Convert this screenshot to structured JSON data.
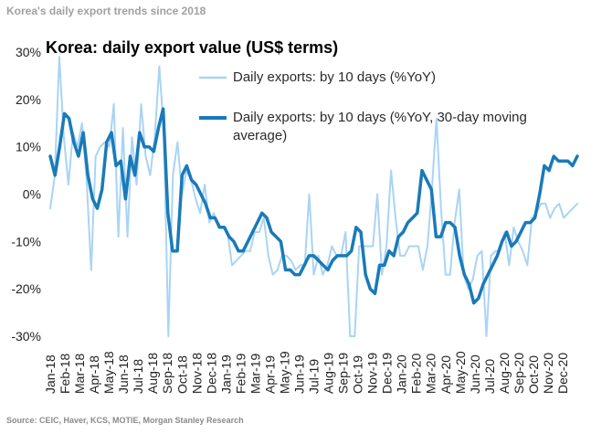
{
  "header": {
    "title": "Korea's daily export trends since 2018"
  },
  "footer": {
    "source": "Source: CEIC, Haver, KCS, MOTIE, Morgan Stanley Research"
  },
  "chart_data": {
    "type": "line",
    "title": "Korea: daily export value (US$ terms)",
    "ylim": [
      -30,
      30
    ],
    "y_ticks": [
      30,
      20,
      10,
      0,
      -10,
      -20,
      -30
    ],
    "y_tick_labels": [
      "30%",
      "20%",
      "10%",
      "0%",
      "-10%",
      "-20%",
      "-30%"
    ],
    "x_range": [
      0,
      108
    ],
    "x_ticks": [
      0,
      3,
      6,
      9,
      12,
      15,
      18,
      21,
      24,
      27,
      30,
      33,
      36,
      39,
      42,
      45,
      48,
      51,
      54,
      57,
      60,
      63,
      66,
      69,
      72,
      75,
      78,
      81,
      84,
      87,
      90,
      93,
      96,
      99,
      102,
      105
    ],
    "x_tick_labels": [
      "Jan-18",
      "Feb-18",
      "Mar-18",
      "Apr-18",
      "May-18",
      "Jun-18",
      "Jul-18",
      "Aug-18",
      "Sep-18",
      "Oct-18",
      "Nov-18",
      "Dec-18",
      "Jan-19",
      "Feb-19",
      "Mar-19",
      "Apr-19",
      "May-19",
      "Jun-19",
      "Jul-19",
      "Aug-19",
      "Sep-19",
      "Oct-19",
      "Nov-19",
      "Dec-19",
      "Jan-20",
      "Feb-20",
      "Mar-20",
      "Apr-20",
      "May-20",
      "Jun-20",
      "Jul-20",
      "Aug-20",
      "Sep-20",
      "Oct-20",
      "Nov-20",
      "Dec-20"
    ],
    "legend": {
      "placement": "top-right"
    },
    "grid": false,
    "series": [
      {
        "name": "Daily exports: by 10 days (%YoY)",
        "color": "#a9d4f5",
        "values": [
          -3,
          4,
          29,
          12,
          2,
          13,
          10,
          15,
          3,
          -16,
          8,
          10,
          11,
          10,
          19,
          -9,
          14,
          -9,
          12,
          2,
          19,
          8,
          4,
          12,
          27,
          13,
          -30,
          4,
          11,
          0,
          5,
          3,
          -1,
          -4,
          2,
          -6,
          -4,
          -7,
          -7,
          -8,
          -15,
          -14,
          -13,
          -12,
          -12,
          -8,
          -8,
          -5,
          -13,
          -17,
          -16,
          -13,
          -13,
          -14,
          -16,
          -15,
          -15,
          0,
          -17,
          -13,
          -17,
          -15,
          -11,
          -13,
          -13,
          -8,
          -30,
          -30,
          -11,
          -11,
          -11,
          -11,
          0,
          -17,
          -11,
          5,
          -5,
          -13,
          -13,
          -11,
          -11,
          -11,
          -16,
          -11,
          1,
          16,
          -3,
          -17,
          -17,
          -6,
          1,
          -17,
          -20,
          -18,
          -13,
          -12,
          -30,
          -13,
          -12,
          -12,
          -8,
          -15,
          -7,
          -10,
          -12,
          -15,
          -5,
          -4,
          -2,
          -2,
          -5,
          -3,
          -2,
          -5,
          -4,
          -3,
          -2
        ]
      },
      {
        "name": "Daily exports: by 10 days (%YoY, 30-day moving average)",
        "color": "#1a7ab8",
        "values": [
          8,
          4,
          10,
          17,
          16,
          11,
          8,
          13,
          4,
          -1,
          -3,
          1,
          11,
          13,
          6,
          7,
          -1,
          8,
          4,
          13,
          10,
          10,
          9,
          14,
          18,
          -4,
          -12,
          -12,
          4,
          6,
          3,
          2,
          0,
          -2,
          -5,
          -5,
          -7,
          -7,
          -9,
          -10,
          -12,
          -12,
          -10,
          -8,
          -6,
          -4,
          -5,
          -8,
          -9,
          -10,
          -16,
          -16,
          -17,
          -17,
          -15,
          -13,
          -13,
          -14,
          -15,
          -16,
          -14,
          -13,
          -13,
          -13,
          -12,
          -7,
          -8,
          -17,
          -20,
          -21,
          -15,
          -15,
          -12,
          -13,
          -9,
          -8,
          -6,
          -5,
          -4,
          5,
          3,
          1,
          -9,
          -9,
          -6,
          -6,
          -7,
          -13,
          -17,
          -19,
          -23,
          -22,
          -19,
          -17,
          -15,
          -13,
          -10,
          -8,
          -11,
          -10,
          -8,
          -6,
          -6,
          -5,
          0,
          6,
          5,
          8,
          7,
          7,
          7,
          6,
          8
        ]
      }
    ]
  }
}
